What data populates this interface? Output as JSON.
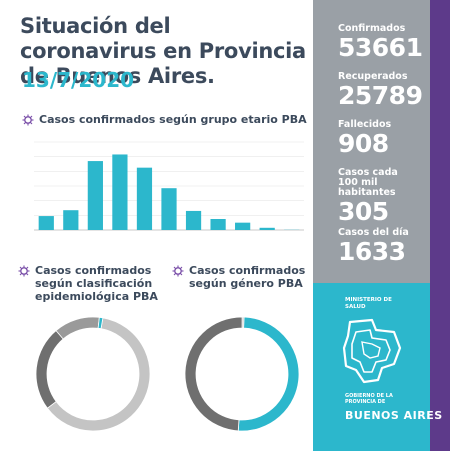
{
  "header": {
    "title": "Situación del coronavirus en Provincia de Buenos Aires.",
    "date": "13/7/2020"
  },
  "sections": {
    "age_title": "Casos confirmados según grupo etario PBA",
    "class_title": "Casos confirmados según clasificación epidemiológica PBA",
    "gender_title": "Casos confirmados según género PBA"
  },
  "stats": [
    {
      "label": "Confirmados",
      "value": "53661"
    },
    {
      "label": "Recuperados",
      "value": "25789"
    },
    {
      "label": "Fallecidos",
      "value": "908"
    },
    {
      "label": "Casos cada 100 mil habitantes",
      "value": "305"
    },
    {
      "label": "Casos del día",
      "value": "1633"
    }
  ],
  "logo": {
    "ministry": "MINISTERIO DE SALUD",
    "gov": "GOBIERNO DE LA PROVINCIA DE",
    "name": "BUENOS AIRES"
  },
  "colors": {
    "teal": "#2cb7cc",
    "dark_gray": "#6f6f6f",
    "light_gray": "#c4c4c4",
    "sidebar": "#9aa0a6",
    "purple": "#5d3a8a",
    "title": "#3c4a5c"
  },
  "chart_data": [
    {
      "type": "bar",
      "title": "Casos confirmados según grupo etario PBA",
      "values": [
        1900,
        2700,
        9400,
        10300,
        8500,
        5700,
        2600,
        1500,
        1000,
        300,
        30
      ],
      "ylim": [
        0,
        12000
      ],
      "yticks": [
        0,
        2000,
        4000,
        6000,
        8000,
        10000,
        12000
      ],
      "grid": true
    },
    {
      "type": "pie",
      "title": "Casos confirmados según clasificación epidemiológica PBA",
      "values": [
        62,
        24,
        13,
        1
      ]
    },
    {
      "type": "pie",
      "title": "Casos confirmados según género PBA",
      "values": [
        50.5,
        49.0,
        0.5
      ]
    }
  ]
}
